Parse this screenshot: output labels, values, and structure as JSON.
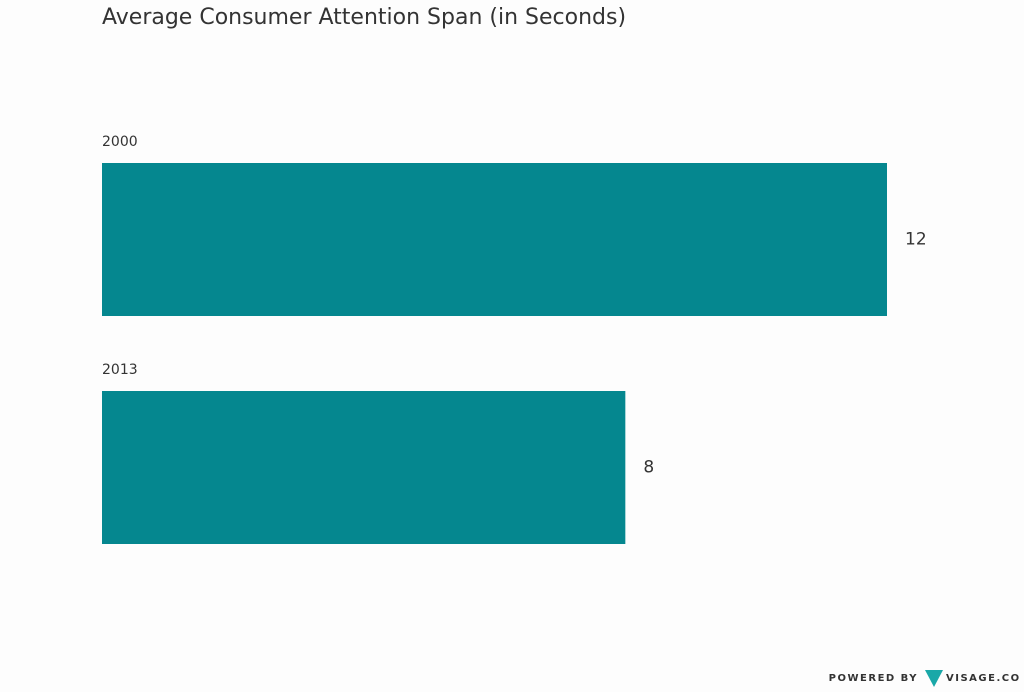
{
  "chart_data": {
    "type": "bar",
    "orientation": "horizontal",
    "title": "Average Consumer Attention Span (in Seconds)",
    "categories": [
      "2000",
      "2013"
    ],
    "values": [
      12,
      8
    ],
    "color": "#05878f"
  },
  "footer": {
    "powered_by": "POWERED BY",
    "brand": "VISAGE.CO"
  }
}
